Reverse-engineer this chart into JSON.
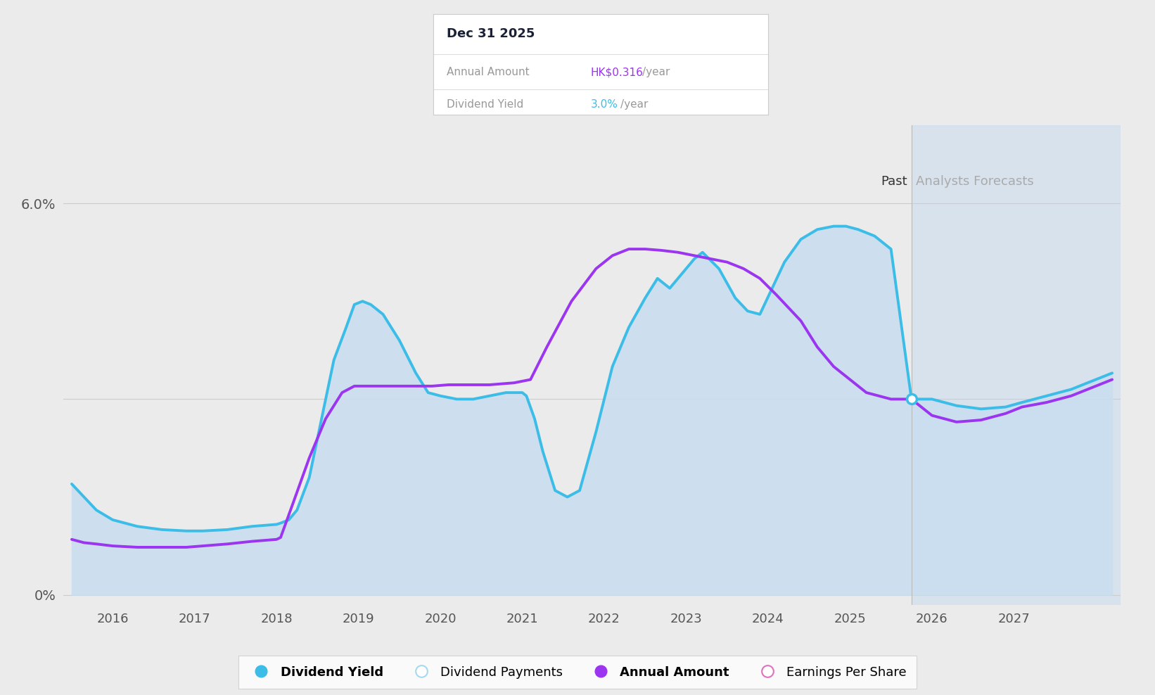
{
  "bg_color": "#ebebeb",
  "plot_bg_color": "#ebebeb",
  "forecast_bg_color": "#ccddf0",
  "past_label": "Past",
  "forecast_label": "Analysts Forecasts",
  "forecast_start": 2025.75,
  "ylim": [
    -0.15,
    7.2
  ],
  "xlim": [
    2015.4,
    2028.3
  ],
  "xtick_years": [
    2016,
    2017,
    2018,
    2019,
    2020,
    2021,
    2022,
    2023,
    2024,
    2025,
    2026,
    2027
  ],
  "dividend_yield_color": "#3bbde8",
  "annual_amount_color": "#9b35f0",
  "fill_color": "#c8def0",
  "fill_alpha": 0.85,
  "line_width": 2.8,
  "dividend_yield_x": [
    2015.5,
    2015.65,
    2015.8,
    2016.0,
    2016.3,
    2016.6,
    2016.9,
    2017.1,
    2017.4,
    2017.7,
    2018.0,
    2018.05,
    2018.15,
    2018.25,
    2018.4,
    2018.55,
    2018.7,
    2018.85,
    2018.95,
    2019.05,
    2019.15,
    2019.3,
    2019.5,
    2019.7,
    2019.85,
    2020.0,
    2020.2,
    2020.4,
    2020.6,
    2020.8,
    2021.0,
    2021.05,
    2021.15,
    2021.25,
    2021.4,
    2021.55,
    2021.7,
    2021.9,
    2022.1,
    2022.3,
    2022.5,
    2022.65,
    2022.8,
    2023.0,
    2023.1,
    2023.2,
    2023.4,
    2023.6,
    2023.75,
    2023.9,
    2024.05,
    2024.2,
    2024.4,
    2024.6,
    2024.8,
    2024.95,
    2025.1,
    2025.3,
    2025.5,
    2025.75,
    2025.75,
    2026.0,
    2026.3,
    2026.6,
    2026.9,
    2027.1,
    2027.4,
    2027.7,
    2028.0,
    2028.2
  ],
  "dividend_yield_y": [
    1.7,
    1.5,
    1.3,
    1.15,
    1.05,
    1.0,
    0.98,
    0.98,
    1.0,
    1.05,
    1.08,
    1.1,
    1.15,
    1.3,
    1.8,
    2.7,
    3.6,
    4.1,
    4.45,
    4.5,
    4.45,
    4.3,
    3.9,
    3.4,
    3.1,
    3.05,
    3.0,
    3.0,
    3.05,
    3.1,
    3.1,
    3.05,
    2.7,
    2.2,
    1.6,
    1.5,
    1.6,
    2.5,
    3.5,
    4.1,
    4.55,
    4.85,
    4.7,
    5.0,
    5.15,
    5.25,
    5.0,
    4.55,
    4.35,
    4.3,
    4.7,
    5.1,
    5.45,
    5.6,
    5.65,
    5.65,
    5.6,
    5.5,
    5.3,
    3.0,
    3.0,
    3.0,
    2.9,
    2.85,
    2.88,
    2.95,
    3.05,
    3.15,
    3.3,
    3.4
  ],
  "annual_amount_x": [
    2015.5,
    2015.65,
    2015.8,
    2016.0,
    2016.3,
    2016.6,
    2016.9,
    2017.1,
    2017.4,
    2017.7,
    2018.0,
    2018.05,
    2018.2,
    2018.4,
    2018.6,
    2018.8,
    2018.95,
    2019.1,
    2019.3,
    2019.5,
    2019.7,
    2019.9,
    2020.1,
    2020.3,
    2020.6,
    2020.9,
    2021.1,
    2021.3,
    2021.6,
    2021.9,
    2022.1,
    2022.3,
    2022.5,
    2022.7,
    2022.9,
    2023.1,
    2023.3,
    2023.5,
    2023.7,
    2023.9,
    2024.1,
    2024.4,
    2024.6,
    2024.8,
    2025.0,
    2025.2,
    2025.5,
    2025.75,
    2025.75,
    2026.0,
    2026.3,
    2026.6,
    2026.9,
    2027.1,
    2027.4,
    2027.7,
    2028.0,
    2028.2
  ],
  "annual_amount_y": [
    0.85,
    0.8,
    0.78,
    0.75,
    0.73,
    0.73,
    0.73,
    0.75,
    0.78,
    0.82,
    0.85,
    0.88,
    1.4,
    2.1,
    2.7,
    3.1,
    3.2,
    3.2,
    3.2,
    3.2,
    3.2,
    3.2,
    3.22,
    3.22,
    3.22,
    3.25,
    3.3,
    3.8,
    4.5,
    5.0,
    5.2,
    5.3,
    5.3,
    5.28,
    5.25,
    5.2,
    5.15,
    5.1,
    5.0,
    4.85,
    4.6,
    4.2,
    3.8,
    3.5,
    3.3,
    3.1,
    3.0,
    3.0,
    3.0,
    2.75,
    2.65,
    2.68,
    2.78,
    2.88,
    2.95,
    3.05,
    3.2,
    3.3
  ],
  "junction_y": 3.0,
  "legend_items": [
    {
      "label": "Dividend Yield",
      "color": "#3bbde8",
      "filled": true
    },
    {
      "label": "Dividend Payments",
      "color": "#a8d8ee",
      "filled": false
    },
    {
      "label": "Annual Amount",
      "color": "#9b35f0",
      "filled": true
    },
    {
      "label": "Earnings Per Share",
      "color": "#e070c0",
      "filled": false
    }
  ],
  "tooltip": {
    "date": "Dec 31 2025",
    "annual_amount_label": "Annual Amount",
    "annual_amount_value": "HK$0.316",
    "annual_amount_suffix": "/year",
    "dividend_yield_label": "Dividend Yield",
    "dividend_yield_value": "3.0%",
    "dividend_yield_suffix": "/year"
  }
}
